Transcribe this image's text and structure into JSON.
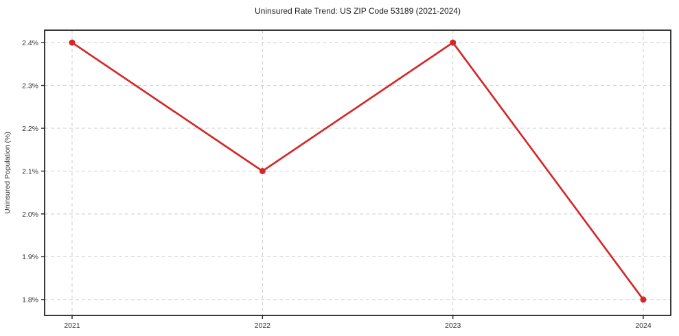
{
  "figure": {
    "background": "#ffffff"
  },
  "chart_data": {
    "type": "line",
    "title": "Uninsured Rate Trend: US ZIP Code 53189 (2021-2024)",
    "xlabel": "",
    "ylabel": "Uninsured Population (%)",
    "categories": [
      "2021",
      "2022",
      "2023",
      "2024"
    ],
    "series": [
      {
        "name": "Uninsured Rate",
        "values": [
          2.4,
          2.1,
          2.4,
          1.8
        ],
        "color": "#d62728",
        "marker": "circle"
      }
    ],
    "x_tick_labels": [
      "2021",
      "2022",
      "2023",
      "2024"
    ],
    "y_ticks": [
      1.8,
      1.9,
      2.0,
      2.1,
      2.2,
      2.3,
      2.4
    ],
    "y_tick_labels": [
      "1.8%",
      "1.9%",
      "2.0%",
      "2.1%",
      "2.2%",
      "2.3%",
      "2.4%"
    ],
    "ylim": [
      1.763,
      2.429
    ],
    "grid": true,
    "grid_color": "#cccccc",
    "grid_dash": "5,4",
    "axis_color": "#222222",
    "tick_label_color": "#333333",
    "legend": "none"
  }
}
